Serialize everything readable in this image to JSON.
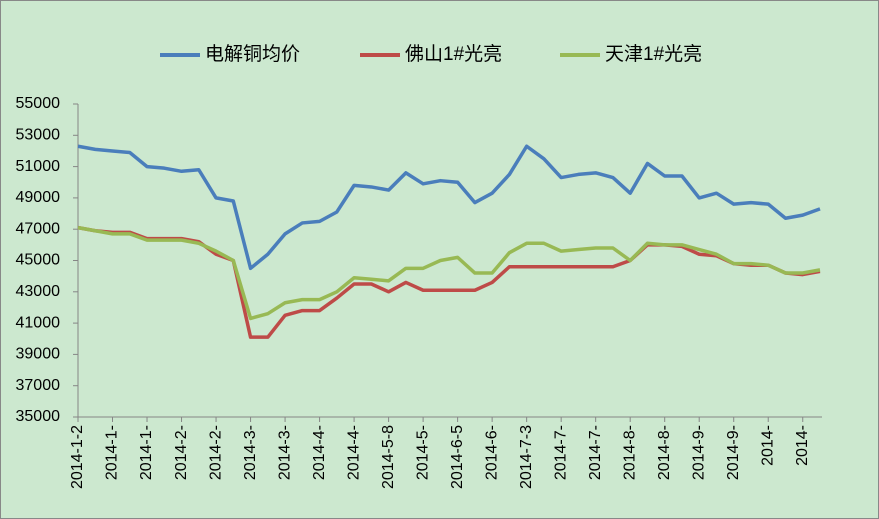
{
  "chart_data": {
    "type": "line",
    "categories": [
      "2014-1-2",
      null,
      "2014-1-",
      null,
      "2014-1-",
      null,
      "2014-2-",
      null,
      "2014-2-",
      null,
      "2014-3-",
      null,
      "2014-3-",
      null,
      "2014-4-",
      null,
      "2014-4-",
      null,
      "2014-5-8",
      null,
      "2014-5-",
      null,
      "2014-6-5",
      null,
      "2014-6-",
      null,
      "2014-7-3",
      null,
      "2014-7-",
      null,
      "2014-7-",
      null,
      "2014-8-",
      null,
      "2014-8-",
      null,
      "2014-9-",
      null,
      "2014-9-",
      null,
      "2014-",
      null,
      "2014-",
      null
    ],
    "series": [
      {
        "name": "电解铜均价",
        "color": "#4a7ebb",
        "values": [
          52300,
          52100,
          52000,
          51900,
          51000,
          50900,
          50700,
          50800,
          49000,
          48800,
          44500,
          45400,
          46700,
          47400,
          47500,
          48100,
          49800,
          49700,
          49500,
          50600,
          49900,
          50100,
          50000,
          48700,
          49300,
          50500,
          52300,
          51500,
          50300,
          50500,
          50600,
          50300,
          49300,
          51200,
          50400,
          50400,
          49000,
          49300,
          48600,
          48700,
          48600,
          47700,
          47900,
          48300
        ]
      },
      {
        "name": "佛山1#光亮",
        "color": "#be4b48",
        "values": [
          47100,
          46900,
          46800,
          46800,
          46400,
          46400,
          46400,
          46200,
          45400,
          45000,
          40100,
          40100,
          41500,
          41800,
          41800,
          42600,
          43500,
          43500,
          43000,
          43600,
          43100,
          43100,
          43100,
          43100,
          43600,
          44600,
          44600,
          44600,
          44600,
          44600,
          44600,
          44600,
          45000,
          46000,
          46000,
          45900,
          45400,
          45300,
          44800,
          44700,
          44700,
          44200,
          44100,
          44300
        ]
      },
      {
        "name": "天津1#光亮",
        "color": "#98b954",
        "values": [
          47100,
          46900,
          46700,
          46700,
          46300,
          46300,
          46300,
          46100,
          45600,
          45000,
          41300,
          41600,
          42300,
          42500,
          42500,
          43000,
          43900,
          43800,
          43700,
          44500,
          44500,
          45000,
          45200,
          44200,
          44200,
          45500,
          46100,
          46100,
          45600,
          45700,
          45800,
          45800,
          45000,
          46100,
          46000,
          46000,
          45700,
          45400,
          44800,
          44800,
          44700,
          44200,
          44200,
          44400
        ]
      }
    ],
    "ylim": [
      35000,
      55000
    ],
    "yticks": [
      35000,
      37000,
      39000,
      41000,
      43000,
      45000,
      47000,
      49000,
      51000,
      53000,
      55000
    ],
    "grid": false,
    "legend": "top"
  }
}
